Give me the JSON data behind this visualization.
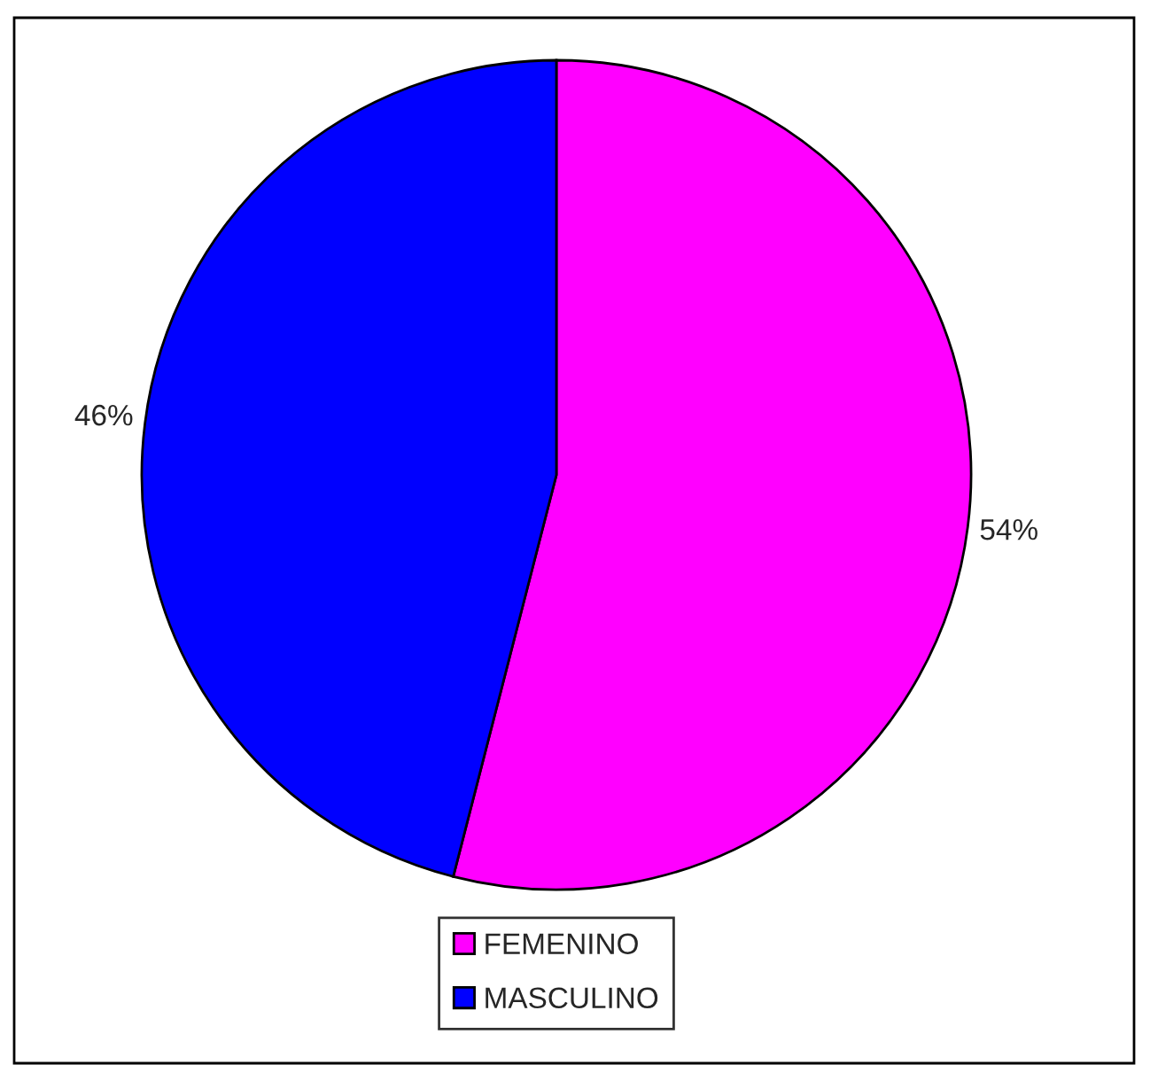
{
  "chart_data": {
    "type": "pie",
    "categories": [
      "FEMENINO",
      "MASCULINO"
    ],
    "values": [
      54,
      46
    ],
    "colors": [
      "#ff00ff",
      "#0000ff"
    ],
    "value_labels": [
      "54%",
      "46%"
    ],
    "legend": "bottom"
  }
}
